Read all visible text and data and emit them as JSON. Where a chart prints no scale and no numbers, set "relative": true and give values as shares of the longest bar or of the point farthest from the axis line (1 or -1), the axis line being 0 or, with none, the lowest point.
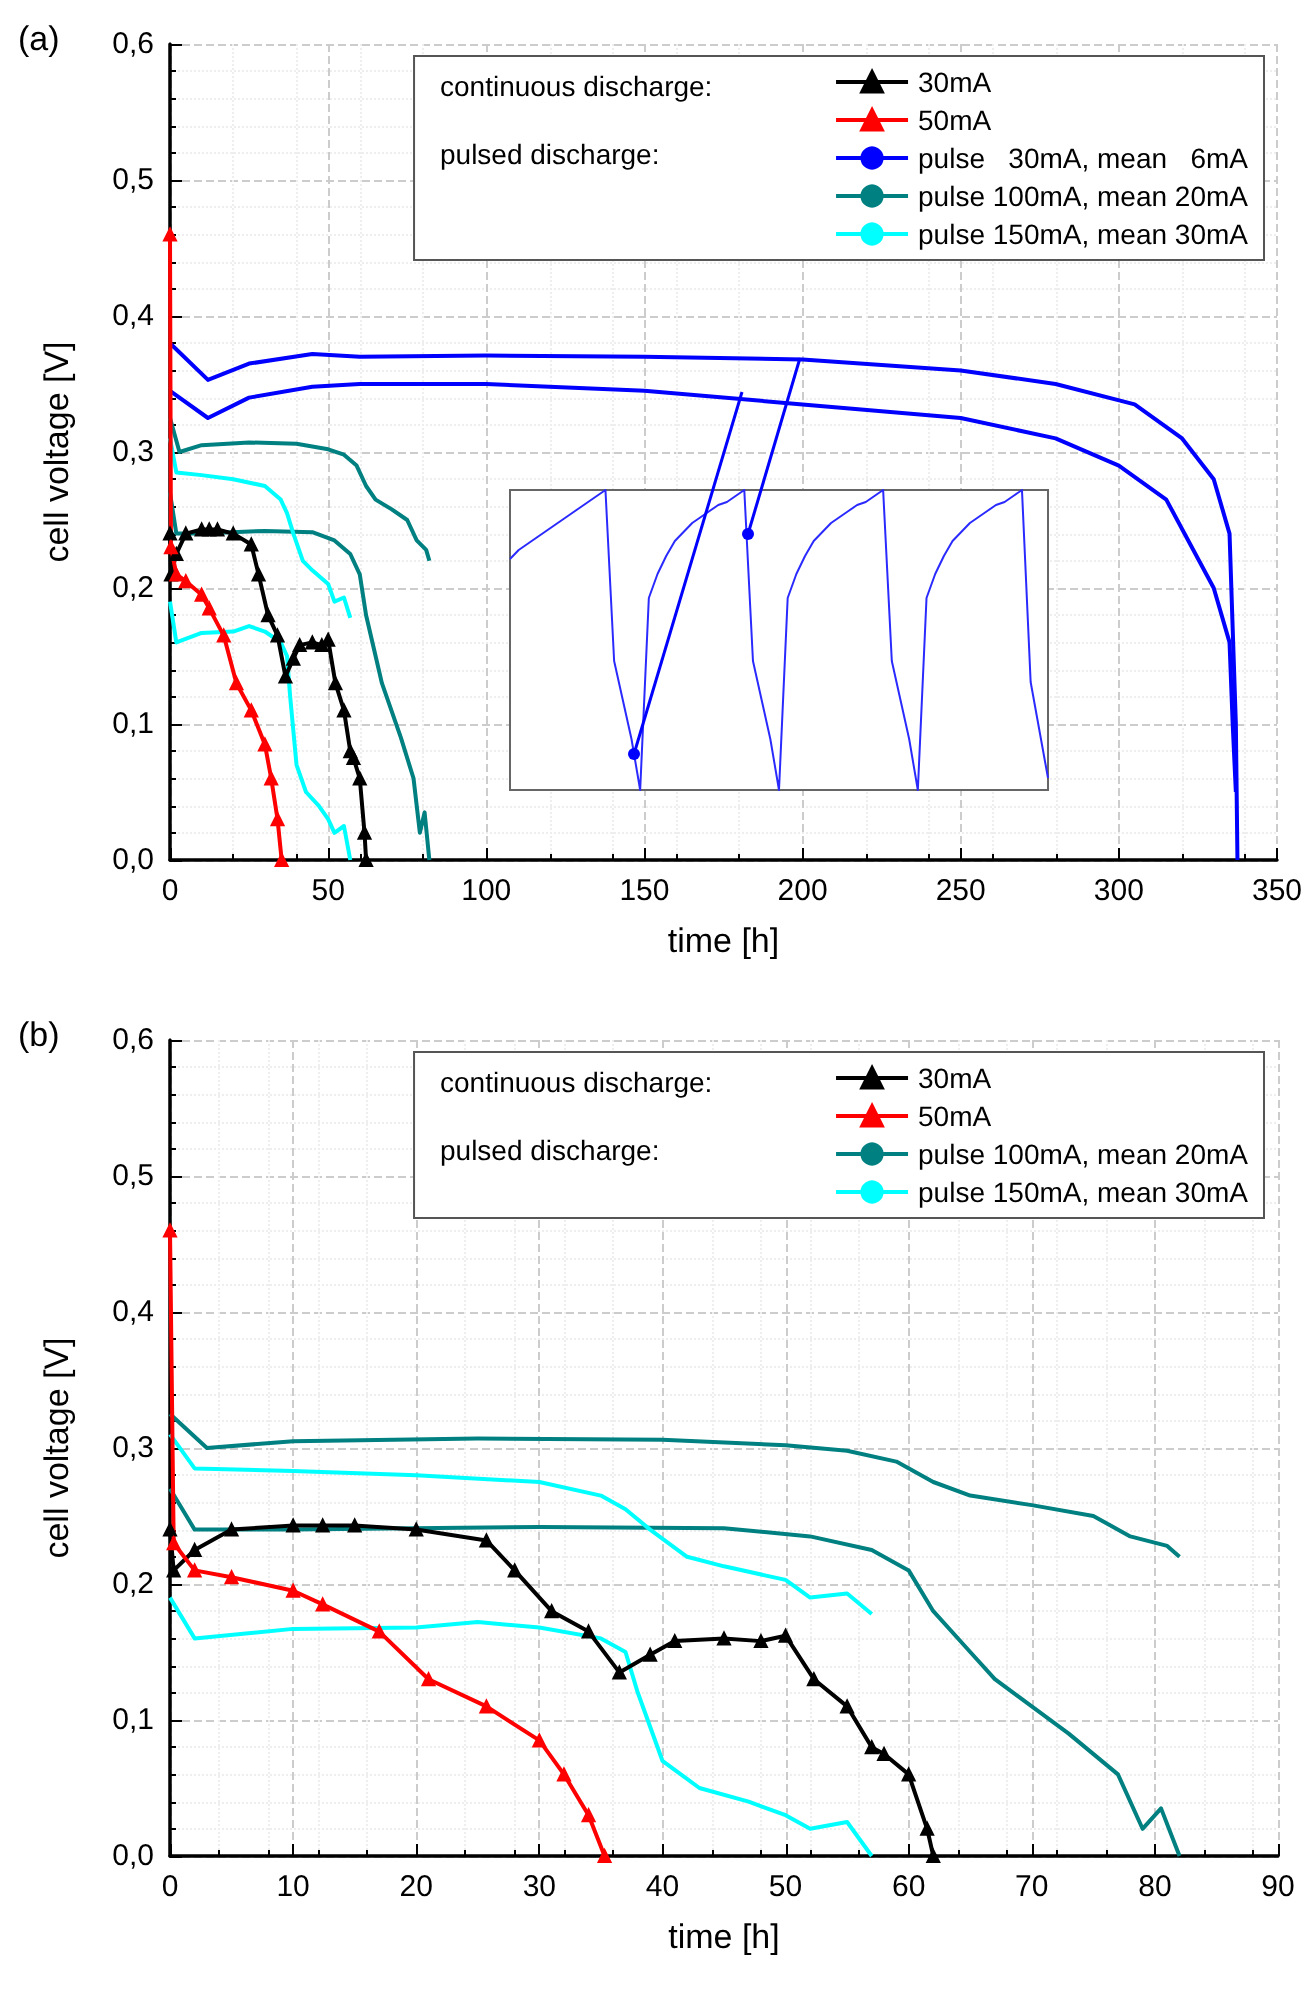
{
  "chart_data": [
    {
      "type": "line",
      "title": "(a)",
      "xlabel": "time [h]",
      "ylabel": "cell voltage [V]",
      "legend": "top right",
      "grid": true,
      "marker": "none",
      "annotations": [
        "continuous discharge:",
        "pulsed discharge:"
      ],
      "xlim": [
        0,
        350
      ],
      "xticks": [
        0,
        50,
        100,
        150,
        200,
        250,
        300,
        350
      ],
      "ylim": [
        0,
        0.6
      ],
      "yticks": [
        {
          "value": 0,
          "label": "0,0"
        },
        {
          "value": 0.1,
          "label": "0,1"
        },
        {
          "value": 0.2,
          "label": "0,2"
        },
        {
          "value": 0.3,
          "label": "0,3"
        },
        {
          "value": 0.4,
          "label": "0,4"
        },
        {
          "value": 0.5,
          "label": "0,5"
        },
        {
          "value": 0.6,
          "label": "0,6"
        }
      ],
      "series": [
        {
          "name": "30mA",
          "color": "#000000",
          "marker": "triangle",
          "x": [
            0,
            0.3,
            2,
            5,
            10,
            12.4,
            15,
            20,
            25.7,
            28,
            31,
            34,
            36.5,
            39,
            41,
            45,
            48,
            50,
            52.3,
            55,
            57,
            58,
            60,
            61.5,
            62
          ],
          "values": [
            0.24,
            0.21,
            0.225,
            0.24,
            0.243,
            0.243,
            0.243,
            0.24,
            0.232,
            0.21,
            0.18,
            0.165,
            0.135,
            0.148,
            0.158,
            0.16,
            0.158,
            0.162,
            0.13,
            0.11,
            0.08,
            0.075,
            0.06,
            0.02,
            0
          ]
        },
        {
          "name": "50mA",
          "color": "#ff0000",
          "marker": "triangle",
          "x": [
            0,
            0.3,
            2,
            5,
            10,
            12.4,
            17,
            21,
            25.7,
            30,
            32,
            34,
            35.3
          ],
          "values": [
            0.46,
            0.23,
            0.21,
            0.205,
            0.195,
            0.185,
            0.165,
            0.13,
            0.11,
            0.085,
            0.06,
            0.03,
            0
          ]
        },
        {
          "name": "pulse   30mA, mean   6mA",
          "color": "#0000ff",
          "x": [
            0,
            12,
            25,
            45,
            60,
            100,
            150,
            200,
            250,
            280,
            305,
            320,
            330,
            335,
            337,
            337.5
          ],
          "values": [
            0.38,
            0.353,
            0.365,
            0.372,
            0.37,
            0.371,
            0.37,
            0.368,
            0.36,
            0.35,
            0.335,
            0.31,
            0.28,
            0.24,
            0.1,
            0
          ]
        },
        {
          "color": "#0000ff",
          "x": [
            0,
            12,
            25,
            45,
            60,
            100,
            150,
            200,
            250,
            280,
            300,
            315,
            330,
            335,
            336,
            337
          ],
          "values": [
            0.345,
            0.325,
            0.34,
            0.348,
            0.35,
            0.35,
            0.345,
            0.335,
            0.325,
            0.31,
            0.29,
            0.265,
            0.2,
            0.16,
            0.1,
            0.05
          ]
        },
        {
          "name": "pulse 100mA, mean 20mA",
          "color": "#008080",
          "x": [
            0,
            3,
            10,
            25,
            40,
            50,
            55,
            59,
            62,
            65,
            70,
            75,
            78,
            81,
            82
          ],
          "values": [
            0.325,
            0.3,
            0.305,
            0.307,
            0.306,
            0.302,
            0.298,
            0.29,
            0.275,
            0.265,
            0.258,
            0.25,
            0.235,
            0.228,
            0.22
          ]
        },
        {
          "color": "#008080",
          "x": [
            0,
            2,
            10,
            30,
            45,
            52,
            57,
            60,
            62,
            65,
            67,
            70,
            73,
            77,
            79,
            80.5,
            82
          ],
          "values": [
            0.27,
            0.24,
            0.24,
            0.242,
            0.241,
            0.235,
            0.225,
            0.21,
            0.18,
            0.15,
            0.13,
            0.11,
            0.09,
            0.06,
            0.02,
            0.035,
            0
          ]
        },
        {
          "name": "pulse 150mA, mean 30mA",
          "color": "#00ffff",
          "x": [
            0,
            2,
            10,
            20,
            30,
            35,
            37,
            39,
            42,
            45,
            50,
            52,
            55,
            57
          ],
          "values": [
            0.31,
            0.285,
            0.283,
            0.28,
            0.275,
            0.265,
            0.255,
            0.24,
            0.22,
            0.213,
            0.203,
            0.19,
            0.193,
            0.178
          ]
        },
        {
          "color": "#00ffff",
          "x": [
            0,
            2,
            10,
            20,
            25,
            30,
            35,
            37,
            38,
            40,
            43,
            47,
            50,
            52,
            55,
            57
          ],
          "values": [
            0.19,
            0.16,
            0.167,
            0.168,
            0.172,
            0.168,
            0.16,
            0.15,
            0.12,
            0.07,
            0.05,
            0.04,
            0.03,
            0.02,
            0.025,
            0
          ]
        }
      ]
    },
    {
      "type": "line",
      "title": "(b)",
      "xlabel": "time [h]",
      "ylabel": "cell voltage [V]",
      "legend": "top right",
      "grid": true,
      "marker": "none",
      "annotations": [
        "continuous discharge:",
        "pulsed discharge:"
      ],
      "xlim": [
        0,
        90
      ],
      "xticks": [
        0,
        10,
        20,
        30,
        40,
        50,
        60,
        70,
        80,
        90
      ],
      "ylim": [
        0,
        0.6
      ],
      "yticks": [
        {
          "value": 0,
          "label": "0,0"
        },
        {
          "value": 0.1,
          "label": "0,1"
        },
        {
          "value": 0.2,
          "label": "0,2"
        },
        {
          "value": 0.3,
          "label": "0,3"
        },
        {
          "value": 0.4,
          "label": "0,4"
        },
        {
          "value": 0.5,
          "label": "0,5"
        },
        {
          "value": 0.6,
          "label": "0,6"
        }
      ],
      "series": [
        {
          "name": "30mA",
          "color": "#000000",
          "marker": "triangle",
          "x": [
            0,
            0.3,
            2,
            5,
            10,
            12.4,
            15,
            20,
            25.7,
            28,
            31,
            34,
            36.5,
            39,
            41,
            45,
            48,
            50,
            52.3,
            55,
            57,
            58,
            60,
            61.5,
            62
          ],
          "values": [
            0.24,
            0.21,
            0.225,
            0.24,
            0.243,
            0.243,
            0.243,
            0.24,
            0.232,
            0.21,
            0.18,
            0.165,
            0.135,
            0.148,
            0.158,
            0.16,
            0.158,
            0.162,
            0.13,
            0.11,
            0.08,
            0.075,
            0.06,
            0.02,
            0
          ]
        },
        {
          "name": "50mA",
          "color": "#ff0000",
          "marker": "triangle",
          "x": [
            0,
            0.3,
            2,
            5,
            10,
            12.4,
            17,
            21,
            25.7,
            30,
            32,
            34,
            35.3
          ],
          "values": [
            0.46,
            0.23,
            0.21,
            0.205,
            0.195,
            0.185,
            0.165,
            0.13,
            0.11,
            0.085,
            0.06,
            0.03,
            0
          ]
        },
        {
          "name": "pulse 100mA, mean 20mA",
          "color": "#008080",
          "x": [
            0,
            3,
            10,
            25,
            40,
            50,
            55,
            59,
            62,
            65,
            70,
            75,
            78,
            81,
            82
          ],
          "values": [
            0.325,
            0.3,
            0.305,
            0.307,
            0.306,
            0.302,
            0.298,
            0.29,
            0.275,
            0.265,
            0.258,
            0.25,
            0.235,
            0.228,
            0.22
          ]
        },
        {
          "color": "#008080",
          "x": [
            0,
            2,
            10,
            30,
            45,
            52,
            57,
            60,
            62,
            65,
            67,
            70,
            73,
            77,
            79,
            80.5,
            82
          ],
          "values": [
            0.27,
            0.24,
            0.24,
            0.242,
            0.241,
            0.235,
            0.225,
            0.21,
            0.18,
            0.15,
            0.13,
            0.11,
            0.09,
            0.06,
            0.02,
            0.035,
            0
          ]
        },
        {
          "name": "pulse 150mA, mean 30mA",
          "color": "#00ffff",
          "x": [
            0,
            2,
            10,
            20,
            30,
            35,
            37,
            39,
            42,
            45,
            50,
            52,
            55,
            57
          ],
          "values": [
            0.31,
            0.285,
            0.283,
            0.28,
            0.275,
            0.265,
            0.255,
            0.24,
            0.22,
            0.213,
            0.203,
            0.19,
            0.193,
            0.178
          ]
        },
        {
          "color": "#00ffff",
          "x": [
            0,
            2,
            10,
            20,
            25,
            30,
            35,
            37,
            38,
            40,
            43,
            47,
            50,
            52,
            55,
            57
          ],
          "values": [
            0.19,
            0.16,
            0.167,
            0.168,
            0.172,
            0.168,
            0.16,
            0.15,
            0.12,
            0.07,
            0.05,
            0.04,
            0.03,
            0.02,
            0.025,
            0
          ]
        }
      ]
    },
    {
      "type": "line",
      "relative": true,
      "grid": false,
      "legend": false,
      "categories": [
        null,
        null,
        null,
        null,
        null,
        null,
        null,
        null,
        null,
        null,
        null,
        null,
        null,
        null,
        null,
        null,
        null,
        null,
        null,
        null,
        null,
        null,
        null,
        null,
        null,
        null,
        null,
        null,
        null,
        null,
        null,
        null,
        null,
        null,
        null,
        null,
        null,
        null,
        null,
        null,
        null,
        null,
        null,
        null,
        null,
        null,
        null,
        null,
        null,
        null,
        null,
        null,
        null,
        null,
        null,
        null,
        null,
        null,
        null,
        null,
        null,
        null,
        null
      ],
      "series": [
        {
          "color": "#2a2aff",
          "values": [
            0.77,
            0.8,
            0.82,
            0.84,
            0.86,
            0.88,
            0.9,
            0.92,
            0.94,
            0.96,
            0.98,
            1,
            0.43,
            0.3,
            0.17,
            0,
            0.64,
            0.72,
            0.78,
            0.83,
            0.86,
            0.89,
            0.91,
            0.93,
            0.95,
            0.96,
            0.98,
            1,
            0.43,
            0.3,
            0.17,
            0,
            0.64,
            0.72,
            0.78,
            0.83,
            0.86,
            0.89,
            0.91,
            0.93,
            0.95,
            0.96,
            0.98,
            1,
            0.43,
            0.3,
            0.17,
            0,
            0.64,
            0.72,
            0.78,
            0.83,
            0.86,
            0.89,
            0.91,
            0.93,
            0.95,
            0.96,
            0.98,
            1,
            0.36,
            0.2,
            0.04
          ]
        }
      ]
    }
  ]
}
